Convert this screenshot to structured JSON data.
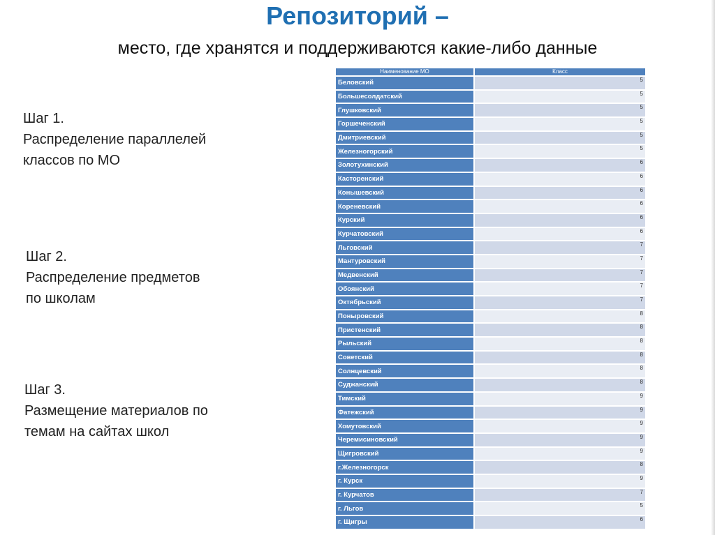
{
  "title": "Репозиторий –",
  "subtitle": "место, где хранятся и поддерживаются какие-либо данные",
  "steps": [
    {
      "label": "Шаг 1.",
      "text1": "Распределение параллелей",
      "text2": "классов по МО"
    },
    {
      "label": "Шаг 2.",
      "text1": "Распределение предметов",
      "text2": "по школам"
    },
    {
      "label": "Шаг 3.",
      "text1": "Размещение материалов по",
      "text2": "темам на сайтах школ"
    }
  ],
  "table": {
    "headers": [
      "Наименование МО",
      "Класс"
    ],
    "rows": [
      {
        "name": "Беловский",
        "grade": "5"
      },
      {
        "name": "Большесолдатский",
        "grade": "5"
      },
      {
        "name": "Глушковский",
        "grade": "5"
      },
      {
        "name": "Горшеченский",
        "grade": "5"
      },
      {
        "name": "Дмитриевский",
        "grade": "5"
      },
      {
        "name": "Железногорский",
        "grade": "5"
      },
      {
        "name": "Золотухинский",
        "grade": "6"
      },
      {
        "name": "Касторенский",
        "grade": "6"
      },
      {
        "name": "Конышевский",
        "grade": "6"
      },
      {
        "name": "Кореневский",
        "grade": "6"
      },
      {
        "name": "Курский",
        "grade": "6"
      },
      {
        "name": "Курчатовский",
        "grade": "6"
      },
      {
        "name": "Льговский",
        "grade": "7"
      },
      {
        "name": "Мантуровский",
        "grade": "7"
      },
      {
        "name": "Медвенский",
        "grade": "7"
      },
      {
        "name": "Обоянский",
        "grade": "7"
      },
      {
        "name": "Октябрьский",
        "grade": "7"
      },
      {
        "name": "Поныровский",
        "grade": "8"
      },
      {
        "name": "Пристенский",
        "grade": "8"
      },
      {
        "name": "Рыльский",
        "grade": "8"
      },
      {
        "name": "Советский",
        "grade": "8"
      },
      {
        "name": "Солнцевский",
        "grade": "8"
      },
      {
        "name": "Суджанский",
        "grade": "8"
      },
      {
        "name": "Тимский",
        "grade": "9"
      },
      {
        "name": "Фатежский",
        "grade": "9"
      },
      {
        "name": "Хомутовский",
        "grade": "9"
      },
      {
        "name": "Черемисиновский",
        "grade": "9"
      },
      {
        "name": "Щигровский",
        "grade": "9"
      },
      {
        "name": "г.Железногорск",
        "grade": "8"
      },
      {
        "name": "г. Курск",
        "grade": "9"
      },
      {
        "name": "г. Курчатов",
        "grade": "7"
      },
      {
        "name": "г. Льгов",
        "grade": "5"
      },
      {
        "name": "г. Щигры",
        "grade": "6"
      }
    ]
  }
}
